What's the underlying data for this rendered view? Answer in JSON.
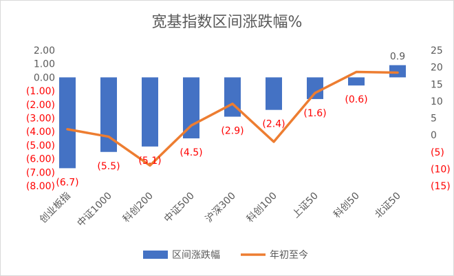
{
  "chart_data": {
    "type": "bar",
    "title": "宽基指数区间涨跌幅%",
    "categories": [
      "创业板指",
      "中证1000",
      "科创200",
      "中证500",
      "沪深300",
      "科创100",
      "上证50",
      "科创50",
      "北证50"
    ],
    "series": [
      {
        "name": "区间涨跌幅",
        "type": "bar",
        "axis": "left",
        "color": "#4472c4",
        "values": [
          -6.7,
          -5.5,
          -5.1,
          -4.5,
          -2.9,
          -2.4,
          -1.6,
          -0.6,
          0.9
        ],
        "labels": [
          "(6.7)",
          "(5.5)",
          "(5.1)",
          "(4.5)",
          "(2.9)",
          "(2.4)",
          "(1.6)",
          "(0.6)",
          "0.9"
        ]
      },
      {
        "name": "年初至今",
        "type": "line",
        "axis": "right",
        "color": "#ed7d31",
        "values": [
          1.7,
          -0.5,
          -9.0,
          2.8,
          9.2,
          -2.0,
          12.4,
          18.6,
          18.4
        ]
      }
    ],
    "left_axis": {
      "ylim": [
        -8,
        2
      ],
      "ticks": [
        "2.00",
        "1.00",
        "0.00",
        "(1.00)",
        "(2.00)",
        "(3.00)",
        "(4.00)",
        "(5.00)",
        "(6.00)",
        "(7.00)",
        "(8.00)"
      ],
      "tick_values": [
        2,
        1,
        0,
        -1,
        -2,
        -3,
        -4,
        -5,
        -6,
        -7,
        -8
      ]
    },
    "right_axis": {
      "ylim": [
        -15,
        25
      ],
      "ticks": [
        "25",
        "20",
        "15",
        "10",
        "5",
        "0",
        "(5)",
        "(10)",
        "(15)"
      ],
      "tick_values": [
        25,
        20,
        15,
        10,
        5,
        0,
        -5,
        -10,
        -15
      ]
    },
    "grid": false,
    "legend": "bottom",
    "colors": {
      "bar": "#4472c4",
      "line": "#ed7d31",
      "negative_text": "#ff0000",
      "positive_text": "#595959"
    }
  }
}
